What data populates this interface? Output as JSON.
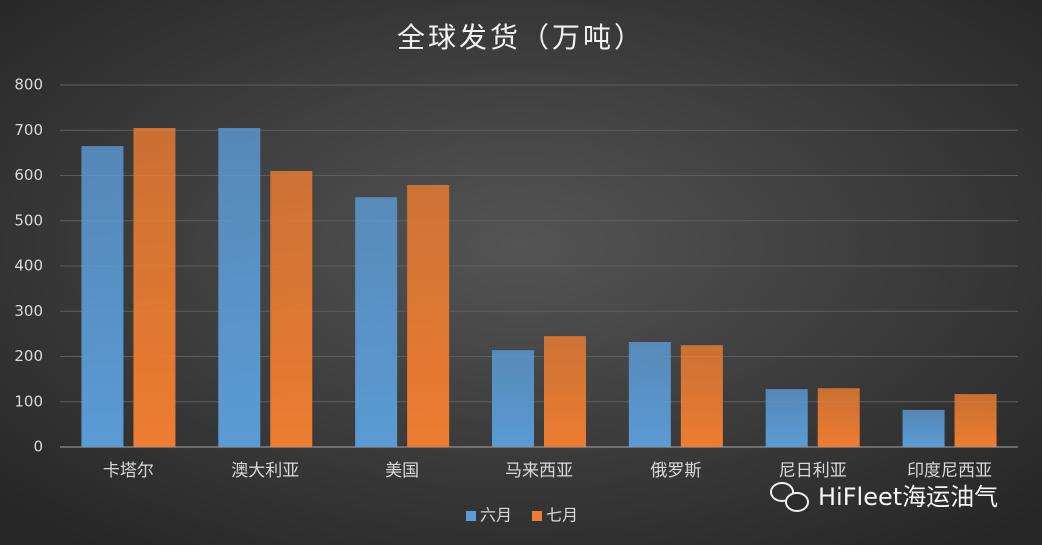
{
  "chart_data": {
    "type": "bar",
    "title": "全球发货（万吨）",
    "categories": [
      "卡塔尔",
      "澳大利亚",
      "美国",
      "马来西亚",
      "俄罗斯",
      "尼日利亚",
      "印度尼西亚"
    ],
    "series": [
      {
        "name": "六月",
        "color": "#5b9bd5",
        "values": [
          665,
          705,
          552,
          214,
          232,
          128,
          82
        ]
      },
      {
        "name": "七月",
        "color": "#ed7d31",
        "values": [
          705,
          610,
          579,
          245,
          225,
          130,
          117
        ]
      }
    ],
    "ylim": [
      0,
      800
    ],
    "yticks": [
      0,
      100,
      200,
      300,
      400,
      500,
      600,
      700,
      800
    ],
    "grid": true,
    "legend": "bottom",
    "watermark": "HiFleet海运油气"
  }
}
